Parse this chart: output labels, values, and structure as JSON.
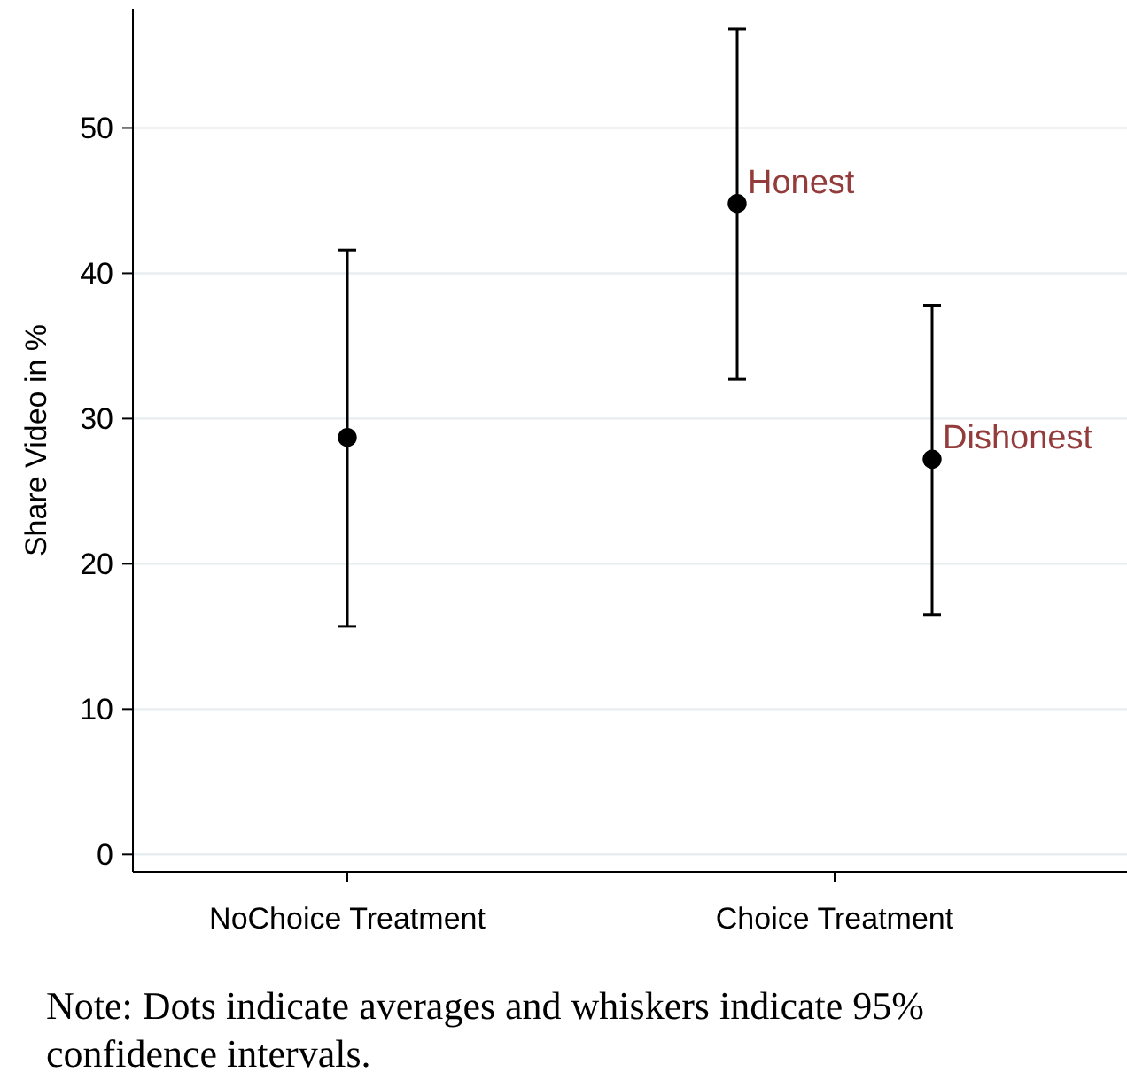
{
  "chart_data": {
    "type": "scatter",
    "ylabel": "Share Video in %",
    "categories": [
      "NoChoice Treatment",
      "Choice Treatment"
    ],
    "ylim": [
      -1.2,
      58.2
    ],
    "yticks": [
      0,
      10,
      20,
      30,
      40,
      50
    ],
    "grid": "y",
    "marker": "circle",
    "series": [
      {
        "color": "#000000",
        "values": [
          28.7,
          null
        ],
        "errors": [
          [
            15.7,
            41.6
          ],
          null
        ]
      },
      {
        "name": "Honest",
        "color": "#000000",
        "values": [
          null,
          44.8
        ],
        "errors": [
          null,
          [
            32.7,
            56.8
          ]
        ]
      },
      {
        "name": "Dishonest",
        "color": "#000000",
        "values": [
          null,
          27.2
        ],
        "errors": [
          null,
          [
            16.5,
            37.8
          ]
        ]
      }
    ],
    "annotations": [
      "Note: Dots indicate averages and whiskers indicate 95% confidence intervals."
    ]
  }
}
